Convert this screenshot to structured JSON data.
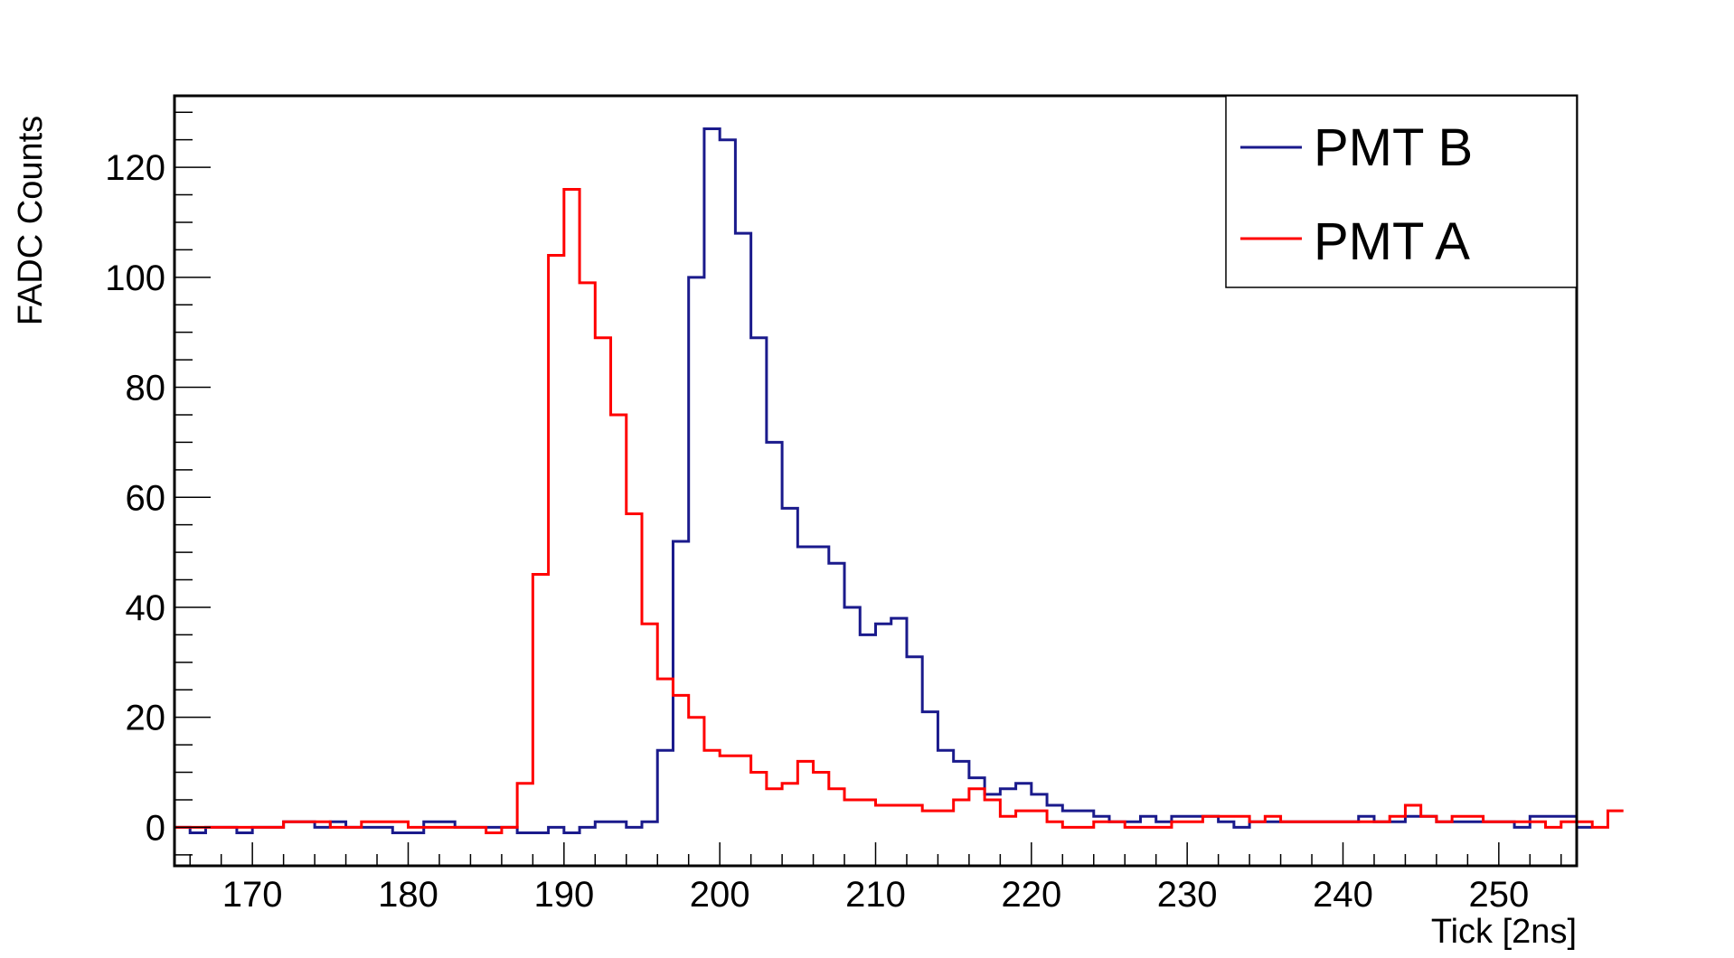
{
  "chart_data": {
    "type": "line",
    "xlabel": "Tick [2ns]",
    "ylabel": "FADC Counts",
    "xlim": [
      165,
      255
    ],
    "ylim": [
      -7,
      133
    ],
    "grid": false,
    "legend_position": "top-right",
    "x_ticks": [
      170,
      180,
      190,
      200,
      210,
      220,
      230,
      240,
      250
    ],
    "y_ticks": [
      0,
      20,
      40,
      60,
      80,
      100,
      120
    ],
    "bin_start": 165,
    "bin_width": 1,
    "series": [
      {
        "name": "PMT B",
        "color": "#1a1a8c",
        "values": [
          0,
          -1,
          0,
          0,
          -1,
          0,
          0,
          1,
          1,
          0,
          1,
          0,
          0,
          0,
          -1,
          -1,
          1,
          1,
          0,
          0,
          0,
          0,
          -1,
          -1,
          0,
          -1,
          0,
          1,
          1,
          0,
          1,
          14,
          52,
          100,
          127,
          125,
          108,
          89,
          70,
          58,
          51,
          51,
          48,
          40,
          35,
          37,
          38,
          31,
          21,
          14,
          12,
          9,
          6,
          7,
          8,
          6,
          4,
          3,
          3,
          2,
          1,
          1,
          2,
          1,
          2,
          2,
          2,
          1,
          0,
          1,
          1,
          1,
          1,
          1,
          1,
          1,
          2,
          1,
          1,
          2,
          2,
          1,
          1,
          1,
          1,
          1,
          0,
          2,
          2,
          2,
          0
        ]
      },
      {
        "name": "PMT A",
        "color": "#ff0000",
        "values": [
          0,
          0,
          0,
          0,
          0,
          0,
          0,
          1,
          1,
          1,
          0,
          0,
          1,
          1,
          1,
          0,
          0,
          0,
          0,
          0,
          -1,
          0,
          8,
          46,
          104,
          116,
          99,
          89,
          75,
          57,
          37,
          27,
          24,
          20,
          14,
          13,
          13,
          10,
          7,
          8,
          12,
          10,
          7,
          5,
          5,
          4,
          4,
          4,
          3,
          3,
          5,
          7,
          5,
          2,
          3,
          3,
          1,
          0,
          0,
          1,
          1,
          0,
          0,
          0,
          1,
          1,
          2,
          2,
          2,
          1,
          2,
          1,
          1,
          1,
          1,
          1,
          1,
          1,
          2,
          4,
          2,
          1,
          2,
          2,
          1,
          1,
          1,
          1,
          0,
          1,
          1,
          0,
          3
        ]
      }
    ],
    "legend_order": [
      "PMT B",
      "PMT A"
    ]
  }
}
